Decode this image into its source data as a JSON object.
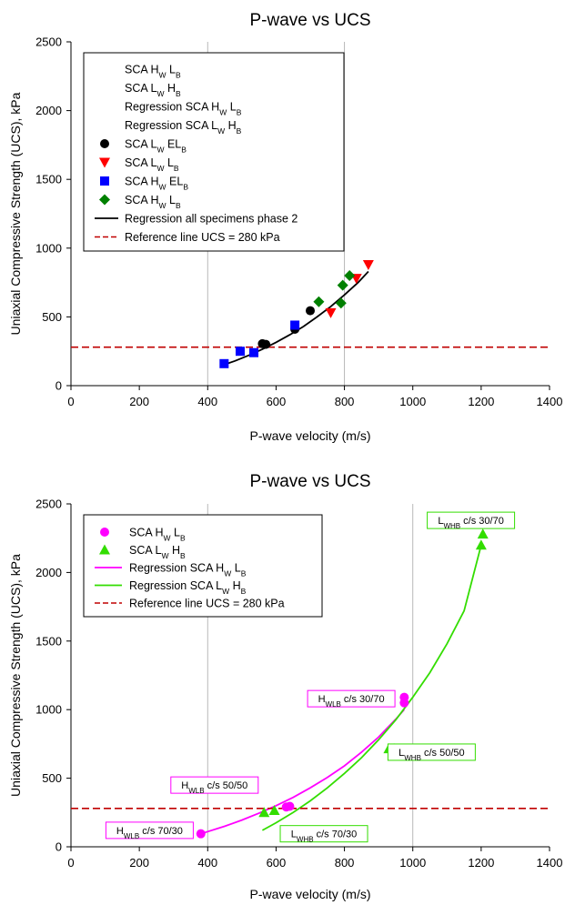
{
  "chart_data": [
    {
      "type": "scatter",
      "title": "P-wave vs UCS",
      "xlabel": "P-wave velocity (m/s)",
      "ylabel": "Uniaxial Compressive Strength (UCS), kPa",
      "xlim": [
        0,
        1400
      ],
      "ylim": [
        0,
        2500
      ],
      "xticks": [
        0,
        200,
        400,
        600,
        800,
        1000,
        1200,
        1400
      ],
      "yticks": [
        0,
        500,
        1000,
        1500,
        2000,
        2500
      ],
      "xgrid": [
        400,
        800
      ],
      "ygrid": [],
      "legend_position": "upper-left",
      "legend": [
        {
          "label": "SCA H_W L_B",
          "marker": "none",
          "color": "#000000"
        },
        {
          "label": "SCA L_W H_B",
          "marker": "none",
          "color": "#000000"
        },
        {
          "label": "Regression SCA H_W L_B",
          "marker": "none",
          "color": "#000000"
        },
        {
          "label": "Regression SCA L_W H_B",
          "marker": "none",
          "color": "#000000"
        },
        {
          "label": "SCA L_W EL_B",
          "marker": "circle",
          "color": "#000000"
        },
        {
          "label": "SCA L_W L_B",
          "marker": "triangle-down",
          "color": "#ff0000"
        },
        {
          "label": "SCA H_W EL_B",
          "marker": "square",
          "color": "#0000ff"
        },
        {
          "label": "SCA H_W L_B",
          "marker": "diamond",
          "color": "#008000"
        },
        {
          "label": "Regression all specimens phase 2",
          "marker": "line",
          "color": "#000000"
        },
        {
          "label": "Reference line UCS = 280 kPa",
          "marker": "dashed",
          "color": "#c00000"
        }
      ],
      "series": [
        {
          "name": "SCA L_W EL_B",
          "marker": "circle",
          "color": "#000000",
          "x": [
            560,
            570,
            655,
            700
          ],
          "y": [
            305,
            300,
            410,
            545
          ]
        },
        {
          "name": "SCA L_W L_B",
          "marker": "triangle-down",
          "color": "#ff0000",
          "x": [
            760,
            835,
            870
          ],
          "y": [
            530,
            780,
            880
          ]
        },
        {
          "name": "SCA H_W EL_B",
          "marker": "square",
          "color": "#0000ff",
          "x": [
            448,
            495,
            535,
            655
          ],
          "y": [
            160,
            250,
            240,
            440
          ]
        },
        {
          "name": "SCA H_W L_B",
          "marker": "diamond",
          "color": "#008000",
          "x": [
            725,
            790,
            795,
            815
          ],
          "y": [
            610,
            600,
            730,
            800
          ]
        }
      ],
      "lines": [
        {
          "name": "Regression all specimens phase 2",
          "style": "solid",
          "color": "#000000",
          "x": [
            440,
            480,
            520,
            560,
            600,
            640,
            680,
            720,
            760,
            800,
            840,
            870
          ],
          "y": [
            145,
            180,
            220,
            265,
            315,
            370,
            430,
            500,
            575,
            660,
            750,
            830
          ]
        },
        {
          "name": "Reference line UCS = 280 kPa",
          "style": "dashed",
          "color": "#c00000",
          "x": [
            0,
            1400
          ],
          "y": [
            280,
            280
          ]
        }
      ],
      "annotations": []
    },
    {
      "type": "scatter",
      "title": "P-wave vs UCS",
      "xlabel": "P-wave velocity (m/s)",
      "ylabel": "Uniaxial Compressive Strength (UCS), kPa",
      "xlim": [
        0,
        1400
      ],
      "ylim": [
        0,
        2500
      ],
      "xticks": [
        0,
        200,
        400,
        600,
        800,
        1000,
        1200,
        1400
      ],
      "yticks": [
        0,
        500,
        1000,
        1500,
        2000,
        2500
      ],
      "xgrid": [
        400,
        1000
      ],
      "ygrid": [],
      "legend_position": "upper-left",
      "legend": [
        {
          "label": "SCA H_W L_B",
          "marker": "circle",
          "color": "#ff00ff"
        },
        {
          "label": "SCA L_W H_B",
          "marker": "triangle-up",
          "color": "#33dd00"
        },
        {
          "label": "Regression SCA H_W L_B",
          "marker": "line",
          "color": "#ff00ff"
        },
        {
          "label": "Regression SCA L_W H_B",
          "marker": "line",
          "color": "#33dd00"
        },
        {
          "label": "Reference line UCS = 280 kPa",
          "marker": "dashed",
          "color": "#c00000"
        }
      ],
      "series": [
        {
          "name": "SCA H_W L_B",
          "marker": "circle",
          "color": "#ff00ff",
          "x": [
            380,
            630,
            640,
            975,
            975
          ],
          "y": [
            95,
            290,
            295,
            1050,
            1090
          ]
        },
        {
          "name": "SCA L_W H_B",
          "marker": "triangle-up",
          "color": "#33dd00",
          "x": [
            565,
            595,
            930,
            945,
            1200,
            1205
          ],
          "y": [
            250,
            265,
            715,
            715,
            2200,
            2280
          ]
        }
      ],
      "lines": [
        {
          "name": "Regression SCA H_W L_B",
          "style": "solid",
          "color": "#ff00ff",
          "x": [
            380,
            450,
            500,
            550,
            600,
            650,
            700,
            750,
            800,
            850,
            900,
            950,
            975
          ],
          "y": [
            95,
            150,
            195,
            245,
            300,
            360,
            430,
            505,
            590,
            690,
            800,
            930,
            1000
          ]
        },
        {
          "name": "Regression SCA L_W H_B",
          "style": "solid",
          "color": "#33dd00",
          "x": [
            560,
            600,
            650,
            700,
            750,
            800,
            850,
            900,
            950,
            1000,
            1050,
            1100,
            1150,
            1200
          ],
          "y": [
            120,
            175,
            250,
            335,
            430,
            535,
            650,
            780,
            925,
            1090,
            1270,
            1480,
            1720,
            2200
          ]
        },
        {
          "name": "Reference line UCS = 280 kPa",
          "style": "dashed",
          "color": "#c00000",
          "x": [
            0,
            1400
          ],
          "y": [
            280,
            280
          ]
        }
      ],
      "annotations": [
        {
          "text": "H_WL_B c/s 70/30",
          "border": "#ff00ff",
          "at": [
            230,
            120
          ]
        },
        {
          "text": "H_WL_B c/s 50/50",
          "border": "#ff00ff",
          "at": [
            420,
            450
          ]
        },
        {
          "text": "H_WL_B c/s 30/70",
          "border": "#ff00ff",
          "at": [
            820,
            1080
          ]
        },
        {
          "text": "L_WH_B c/s 50/50",
          "border": "#33dd00",
          "at": [
            1055,
            690
          ]
        },
        {
          "text": "L_WH_B c/s 70/30",
          "border": "#33dd00",
          "at": [
            740,
            95
          ]
        },
        {
          "text": "L_WH_B c/s 30/70",
          "border": "#33dd00",
          "at": [
            1170,
            2380
          ]
        }
      ]
    }
  ]
}
